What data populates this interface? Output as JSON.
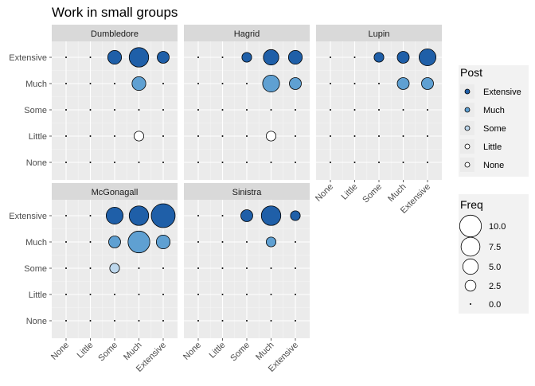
{
  "chart_data": {
    "type": "scatter",
    "title": "Work in small groups",
    "x_levels": [
      "None",
      "Little",
      "Some",
      "Much",
      "Extensive"
    ],
    "y_levels": [
      "None",
      "Little",
      "Some",
      "Much",
      "Extensive"
    ],
    "colors": {
      "Extensive": "#1f5fa8",
      "Much": "#5fa0d2",
      "Some": "#bdd7ec",
      "Little": "#ffffff",
      "None": "#ffffff",
      "panel_bg": "#ebebeb",
      "strip_bg": "#d9d9d9",
      "grid": "#ffffff"
    },
    "size_scale": {
      "max_value": 12
    },
    "facets": [
      {
        "name": "Dumbledore",
        "points": [
          {
            "x": "Some",
            "y": "Extensive",
            "freq": 4
          },
          {
            "x": "Much",
            "y": "Extensive",
            "freq": 8
          },
          {
            "x": "Extensive",
            "y": "Extensive",
            "freq": 3
          },
          {
            "x": "Much",
            "y": "Much",
            "freq": 4
          },
          {
            "x": "Much",
            "y": "Little",
            "freq": 2
          }
        ]
      },
      {
        "name": "Hagrid",
        "points": [
          {
            "x": "Some",
            "y": "Extensive",
            "freq": 2
          },
          {
            "x": "Much",
            "y": "Extensive",
            "freq": 5
          },
          {
            "x": "Extensive",
            "y": "Extensive",
            "freq": 4
          },
          {
            "x": "Much",
            "y": "Much",
            "freq": 6
          },
          {
            "x": "Extensive",
            "y": "Much",
            "freq": 3
          },
          {
            "x": "Much",
            "y": "Little",
            "freq": 2
          }
        ]
      },
      {
        "name": "Lupin",
        "points": [
          {
            "x": "Some",
            "y": "Extensive",
            "freq": 2
          },
          {
            "x": "Much",
            "y": "Extensive",
            "freq": 3
          },
          {
            "x": "Extensive",
            "y": "Extensive",
            "freq": 6
          },
          {
            "x": "Much",
            "y": "Much",
            "freq": 3
          },
          {
            "x": "Extensive",
            "y": "Much",
            "freq": 3
          }
        ]
      },
      {
        "name": "McGonagall",
        "points": [
          {
            "x": "Some",
            "y": "Extensive",
            "freq": 6
          },
          {
            "x": "Much",
            "y": "Extensive",
            "freq": 8
          },
          {
            "x": "Extensive",
            "y": "Extensive",
            "freq": 12
          },
          {
            "x": "Some",
            "y": "Much",
            "freq": 3
          },
          {
            "x": "Much",
            "y": "Much",
            "freq": 10
          },
          {
            "x": "Extensive",
            "y": "Much",
            "freq": 4
          },
          {
            "x": "Some",
            "y": "Some",
            "freq": 2
          }
        ]
      },
      {
        "name": "Sinistra",
        "points": [
          {
            "x": "Some",
            "y": "Extensive",
            "freq": 3
          },
          {
            "x": "Much",
            "y": "Extensive",
            "freq": 8
          },
          {
            "x": "Extensive",
            "y": "Extensive",
            "freq": 2
          },
          {
            "x": "Much",
            "y": "Much",
            "freq": 2
          }
        ]
      }
    ],
    "legend_color": {
      "title": "Post",
      "entries": [
        "Extensive",
        "Much",
        "Some",
        "Little",
        "None"
      ]
    },
    "legend_size": {
      "title": "Freq",
      "entries": [
        {
          "label": "10.0",
          "value": 10
        },
        {
          "label": "7.5",
          "value": 7.5
        },
        {
          "label": "5.0",
          "value": 5
        },
        {
          "label": "2.5",
          "value": 2.5
        },
        {
          "label": "0.0",
          "value": 0
        }
      ]
    }
  }
}
